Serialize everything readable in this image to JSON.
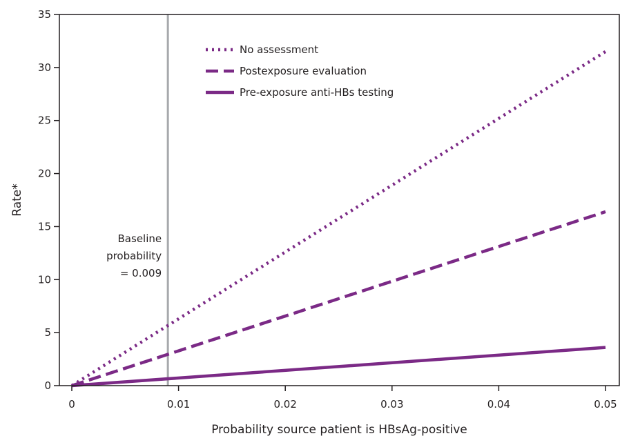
{
  "chart_data": {
    "type": "line",
    "xlabel": "Probability source patient is HBsAg-positive",
    "ylabel": "Rate*",
    "xlim": [
      0,
      0.05
    ],
    "ylim": [
      0,
      35
    ],
    "xticks": [
      0,
      0.01,
      0.02,
      0.03,
      0.04,
      0.05
    ],
    "xtick_labels": [
      "0",
      "0.01",
      "0.02",
      "0.03",
      "0.04",
      "0.05"
    ],
    "yticks": [
      0,
      5,
      10,
      15,
      20,
      25,
      30,
      35
    ],
    "ytick_labels": [
      "0",
      "5",
      "10",
      "15",
      "20",
      "25",
      "30",
      "35"
    ],
    "grid": false,
    "legend_position": "top-center",
    "series": [
      {
        "name": "No assessment",
        "style": "dotted",
        "color": "#7b2a86",
        "x": [
          0,
          0.05
        ],
        "y": [
          0,
          31.5
        ]
      },
      {
        "name": "Postexposure evaluation",
        "style": "dashed",
        "color": "#7b2a86",
        "x": [
          0,
          0.05
        ],
        "y": [
          0,
          16.4
        ]
      },
      {
        "name": "Pre-exposure anti-HBs testing",
        "style": "solid",
        "color": "#7b2a86",
        "x": [
          0,
          0.05
        ],
        "y": [
          0,
          3.6
        ]
      }
    ],
    "reference_line": {
      "x": 0.009,
      "color": "#a7a9ac",
      "label_lines": [
        "Baseline",
        "probability",
        "= 0.009"
      ]
    }
  }
}
